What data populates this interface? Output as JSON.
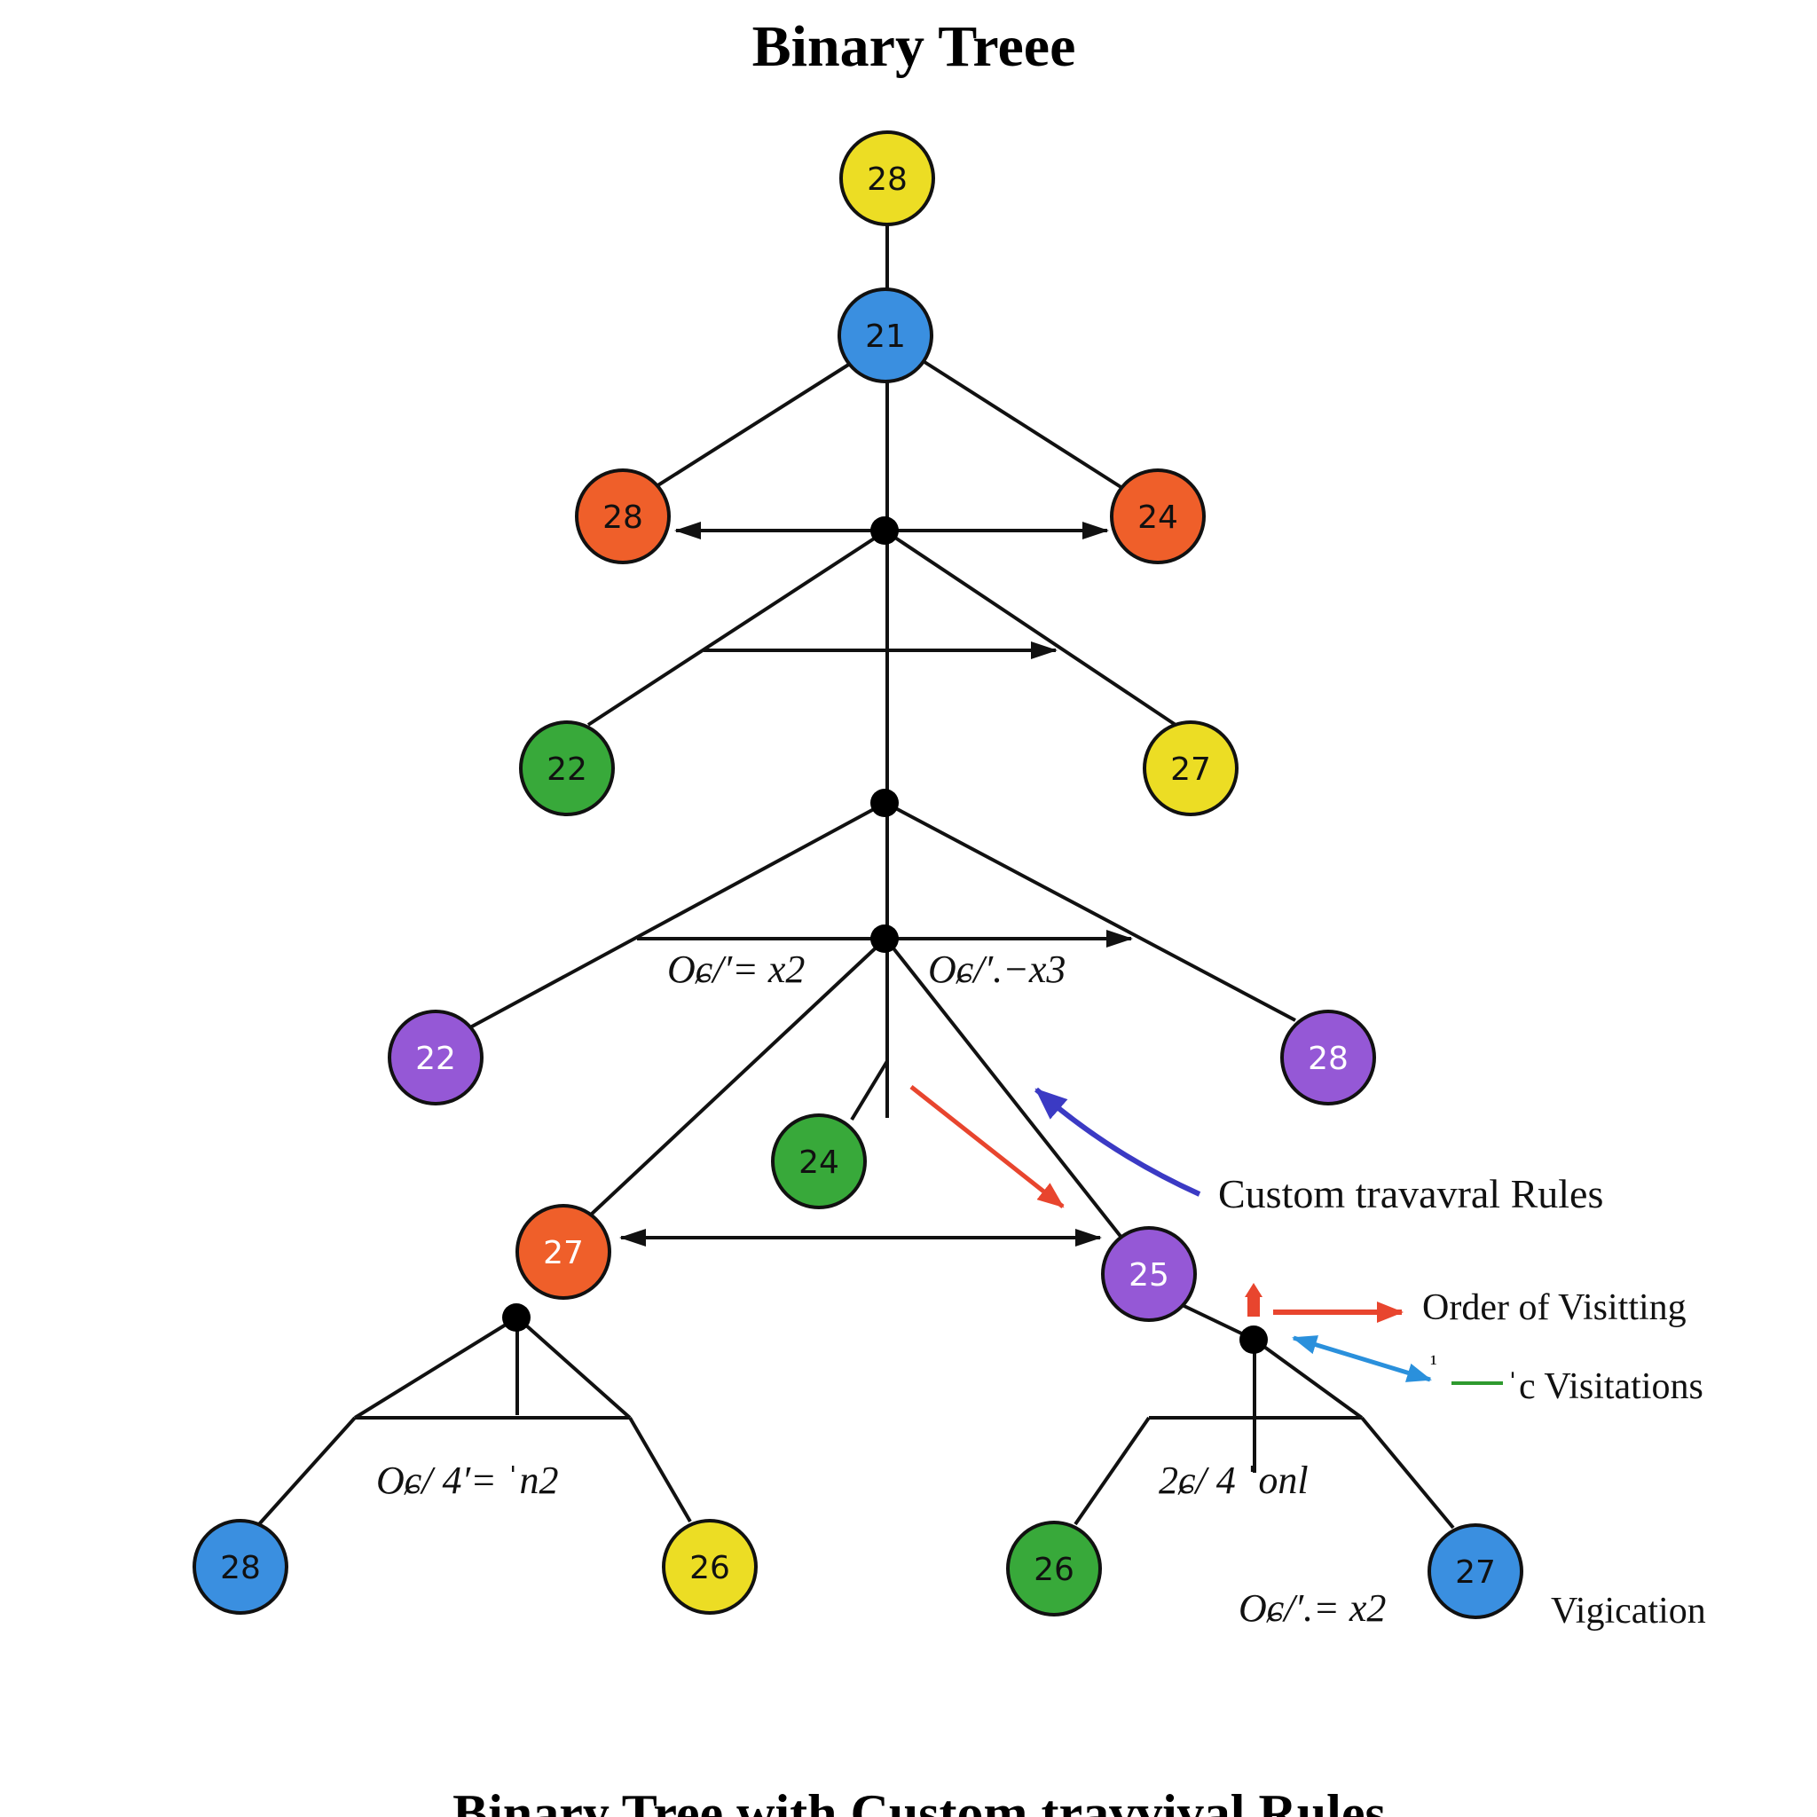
{
  "diagram": {
    "title": "Binary Treee",
    "subtitle": "Binary Tree with Custom travvival Rules",
    "colors": {
      "yellow": "#ECDD24",
      "blue": "#3A8FE0",
      "orange": "#EF5F2A",
      "green": "#38A93A",
      "purple": "#9558D6",
      "edge": "#111111",
      "red_arrow": "#E8452E",
      "indigo_arrow": "#3B3AC4",
      "cyan_arrow": "#2A90DC",
      "green_line": "#2E9A2E"
    },
    "nodes": {
      "root": {
        "label": "28",
        "color": "yellow"
      },
      "n21": {
        "label": "21",
        "color": "blue"
      },
      "l1_left": {
        "label": "28",
        "color": "orange"
      },
      "l1_right": {
        "label": "24",
        "color": "orange"
      },
      "l2_left": {
        "label": "22",
        "color": "green"
      },
      "l2_right": {
        "label": "27",
        "color": "yellow"
      },
      "l3_left": {
        "label": "22",
        "color": "purple"
      },
      "l3_right": {
        "label": "28",
        "color": "purple"
      },
      "l3_mid": {
        "label": "24",
        "color": "green"
      },
      "l4_left": {
        "label": "27",
        "color": "orange"
      },
      "l4_right": {
        "label": "25",
        "color": "purple"
      },
      "leaf_1": {
        "label": "28",
        "color": "blue"
      },
      "leaf_2": {
        "label": "26",
        "color": "yellow"
      },
      "leaf_3": {
        "label": "26",
        "color": "green"
      },
      "leaf_4": {
        "label": "27",
        "color": "blue"
      }
    },
    "formulas": {
      "left_mid": "Oɕ/′= x2",
      "right_mid": "Oɕ/′.−x3",
      "bottom_left": "Oɕ/ 4′= ˈn2",
      "bottom_right": "2ɕ/ 4 ˈonl",
      "bottom_far_right": "Oɕ/′.= x2"
    },
    "legend": {
      "custom_rules": "Custom travavral Rules",
      "order": "Order of Visitting",
      "visitations": "ˈc Visitations",
      "visitations_mark": "¹",
      "vigication": "Vigication"
    }
  }
}
